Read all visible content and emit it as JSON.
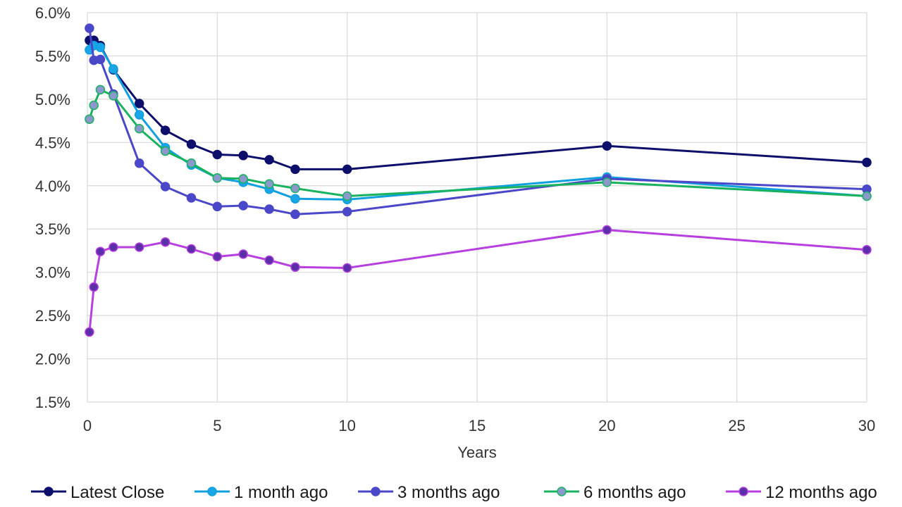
{
  "chart_data": {
    "type": "line",
    "title": "",
    "xlabel": "Years",
    "ylabel": "",
    "xlim": [
      0,
      30
    ],
    "ylim": [
      1.5,
      6.0
    ],
    "x_ticks": [
      0,
      5,
      10,
      15,
      20,
      25,
      30
    ],
    "x_tick_labels": [
      "0",
      "5",
      "10",
      "15",
      "20",
      "25",
      "30"
    ],
    "y_ticks": [
      1.5,
      2.0,
      2.5,
      3.0,
      3.5,
      4.0,
      4.5,
      5.0,
      5.5,
      6.0
    ],
    "y_tick_labels": [
      "1.5%",
      "2.0%",
      "2.5%",
      "3.0%",
      "3.5%",
      "4.0%",
      "4.5%",
      "5.0%",
      "5.5%",
      "6.0%"
    ],
    "grid": true,
    "legend_position": "bottom",
    "x": [
      0.08,
      0.25,
      0.5,
      1,
      2,
      3,
      4,
      5,
      6,
      7,
      8,
      10,
      20,
      30
    ],
    "series": [
      {
        "name": "Latest Close",
        "color": "#0d0f6b",
        "marker_color": "#0d0f6b",
        "values": [
          5.68,
          5.68,
          5.62,
          5.34,
          4.95,
          4.64,
          4.48,
          4.36,
          4.35,
          4.3,
          4.19,
          4.19,
          4.46,
          4.27
        ]
      },
      {
        "name": "1 month ago",
        "color": "#0fa0de",
        "marker_color": "#1aa6e6",
        "values": [
          5.57,
          5.62,
          5.6,
          5.35,
          4.82,
          4.44,
          4.24,
          4.09,
          4.04,
          3.96,
          3.85,
          3.84,
          4.1,
          3.88
        ]
      },
      {
        "name": "3 months ago",
        "color": "#4b47c9",
        "marker_color": "#4b47c9",
        "values": [
          5.82,
          5.45,
          5.46,
          5.06,
          4.26,
          3.99,
          3.86,
          3.76,
          3.77,
          3.73,
          3.67,
          3.7,
          4.08,
          3.96
        ]
      },
      {
        "name": "6 months ago",
        "color": "#19b35f",
        "marker_color": "#8a98cc",
        "values": [
          4.77,
          4.93,
          5.11,
          5.04,
          4.66,
          4.4,
          4.26,
          4.09,
          4.08,
          4.02,
          3.97,
          3.88,
          4.04,
          3.88
        ]
      },
      {
        "name": "12 months ago",
        "color": "#b63fe0",
        "marker_color": "#5a2fa8",
        "values": [
          2.31,
          2.83,
          3.24,
          3.29,
          3.29,
          3.35,
          3.27,
          3.18,
          3.21,
          3.14,
          3.06,
          3.05,
          3.49,
          3.26
        ]
      }
    ]
  }
}
